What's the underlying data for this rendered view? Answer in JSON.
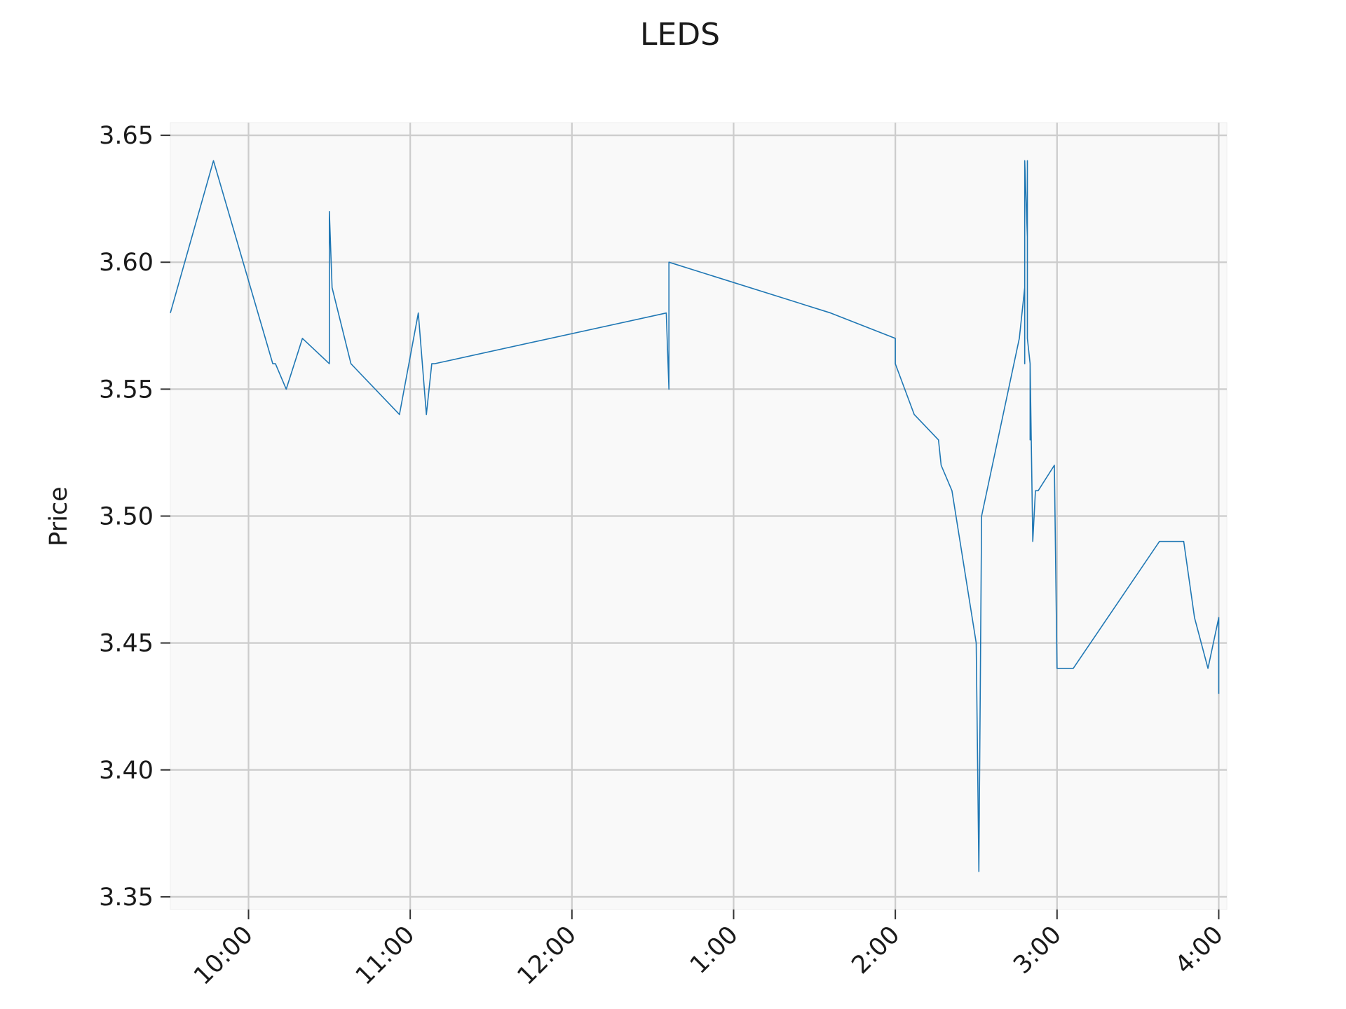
{
  "chart_data": {
    "type": "line",
    "title": "LEDS",
    "xlabel": "",
    "ylabel": "Price",
    "grid": true,
    "ylim": [
      3.345,
      3.655
    ],
    "xlim": [
      "09:31",
      "16:03"
    ],
    "y_ticks": [
      3.35,
      3.4,
      3.45,
      3.5,
      3.55,
      3.6,
      3.65
    ],
    "y_tick_labels": [
      "3.35",
      "3.40",
      "3.45",
      "3.50",
      "3.55",
      "3.60",
      "3.65"
    ],
    "x_ticks": [
      "10:00",
      "11:00",
      "12:00",
      "13:00",
      "14:00",
      "15:00",
      "16:00"
    ],
    "x_tick_labels": [
      "10:00",
      "11:00",
      "12:00",
      "1:00",
      "2:00",
      "3:00",
      "4:00"
    ],
    "colors": {
      "series": "#1f77b4",
      "plot_background": "#f9f9f9",
      "grid": "#cccccc"
    },
    "series": [
      {
        "x": [
          "09:31",
          "09:47",
          "10:09",
          "10:10",
          "10:14",
          "10:20",
          "10:30",
          "10:30",
          "10:31",
          "10:38",
          "10:56",
          "11:03",
          "11:06",
          "11:08",
          "11:09",
          "12:35",
          "12:36",
          "12:36",
          "13:36",
          "14:00",
          "14:00",
          "14:07",
          "14:16",
          "14:16",
          "14:17",
          "14:21",
          "14:30",
          "14:31",
          "14:32",
          "14:46",
          "14:48",
          "14:48",
          "14:48",
          "14:49",
          "14:49",
          "14:49",
          "14:49",
          "14:49",
          "14:50",
          "14:50",
          "14:50",
          "14:51",
          "14:52",
          "14:52",
          "14:53",
          "14:59",
          "15:00",
          "15:01",
          "15:06",
          "15:38",
          "15:47",
          "15:51",
          "15:56",
          "16:00",
          "16:00"
        ],
        "y": [
          3.58,
          3.64,
          3.56,
          3.56,
          3.55,
          3.57,
          3.56,
          3.62,
          3.59,
          3.56,
          3.54,
          3.58,
          3.54,
          3.56,
          3.56,
          3.58,
          3.55,
          3.6,
          3.58,
          3.57,
          3.56,
          3.54,
          3.53,
          3.53,
          3.52,
          3.51,
          3.45,
          3.36,
          3.5,
          3.57,
          3.59,
          3.56,
          3.64,
          3.61,
          3.63,
          3.61,
          3.64,
          3.57,
          3.56,
          3.53,
          3.56,
          3.49,
          3.51,
          3.51,
          3.51,
          3.52,
          3.44,
          3.44,
          3.44,
          3.49,
          3.49,
          3.46,
          3.44,
          3.46,
          3.43
        ]
      }
    ]
  }
}
